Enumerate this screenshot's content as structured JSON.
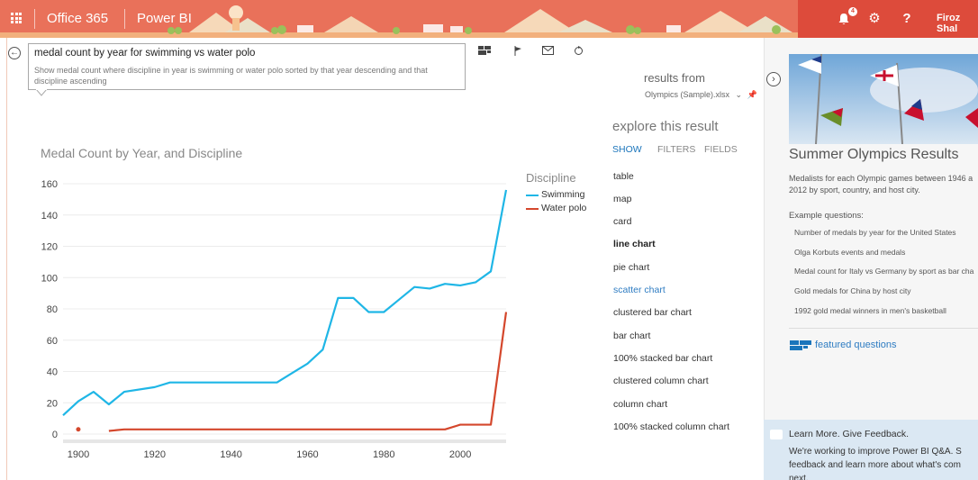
{
  "topbar": {
    "app_name": "Office 365",
    "product_name": "Power BI",
    "notification_count": "4",
    "help_label": "?",
    "user_name": "Firoz Shal"
  },
  "question": {
    "input_value": "medal count by year for swimming vs water polo",
    "restatement": "Show medal count where discipline in year is swimming or water polo sorted by that year descending and that discipline ascending"
  },
  "results": {
    "label": "results from",
    "source": "Olympics (Sample).xlsx"
  },
  "explore": {
    "title": "explore this result",
    "tabs": [
      "SHOW",
      "FILTERS",
      "FIELDS"
    ],
    "visualizations": [
      "table",
      "map",
      "card",
      "line chart",
      "pie chart",
      "scatter chart",
      "clustered bar chart",
      "bar chart",
      "100% stacked bar chart",
      "clustered column chart",
      "column chart",
      "100% stacked column chart"
    ]
  },
  "chart_data": {
    "type": "line",
    "title": "Medal Count by Year, and Discipline",
    "legend_title": "Discipline",
    "legend_position": "right",
    "ylim": [
      0,
      160
    ],
    "xlim": [
      1896,
      2012
    ],
    "yticks": [
      "0",
      "20",
      "40",
      "60",
      "80",
      "100",
      "120",
      "140",
      "160"
    ],
    "xticks": [
      "1900",
      "1920",
      "1940",
      "1960",
      "1980",
      "2000"
    ],
    "grid": true,
    "series": [
      {
        "name": "Swimming",
        "color": "#1fb6e6",
        "x": [
          1896,
          1900,
          1904,
          1908,
          1912,
          1920,
          1924,
          1928,
          1932,
          1936,
          1948,
          1952,
          1956,
          1960,
          1964,
          1968,
          1972,
          1976,
          1980,
          1984,
          1988,
          1992,
          1996,
          2000,
          2004,
          2008,
          2012
        ],
        "values": [
          12,
          21,
          27,
          19,
          27,
          30,
          33,
          33,
          33,
          33,
          33,
          33,
          39,
          45,
          54,
          87,
          87,
          78,
          78,
          86,
          94,
          93,
          96,
          95,
          97,
          104,
          156
        ]
      },
      {
        "name": "Water polo",
        "color": "#d4472c",
        "x": [
          1908,
          1912,
          1920,
          1924,
          1928,
          1932,
          1936,
          1948,
          1952,
          1956,
          1960,
          1964,
          1968,
          1972,
          1976,
          1980,
          1984,
          1988,
          1992,
          1996,
          2000,
          2004,
          2008,
          2012
        ],
        "values": [
          2,
          3,
          3,
          3,
          3,
          3,
          3,
          3,
          3,
          3,
          3,
          3,
          3,
          3,
          3,
          3,
          3,
          3,
          3,
          3,
          6,
          6,
          6,
          78
        ]
      },
      {
        "name": "Water polo (1900)",
        "color": "#d4472c",
        "x": [
          1900
        ],
        "values": [
          3
        ]
      }
    ]
  },
  "right_panel": {
    "title": "Summer Olympics Results",
    "description": "Medalists for each Olympic games between 1946 a 2012 by sport, country, and host city.",
    "examples_label": "Example questions:",
    "examples": [
      "Number of medals by year for the United States",
      "Olga Korbuts events and medals",
      "Medal count for Italy vs Germany by sport as bar cha",
      "Gold medals for China by host city",
      "1992 gold medal winners in men's basketball"
    ],
    "featured_link": "featured questions"
  },
  "feedback": {
    "title": "Learn More. Give Feedback.",
    "text": "We're working to improve Power BI Q&A. S feedback and learn more about what's com next."
  },
  "colors": {
    "topbar": "#e9715a",
    "topbar_right": "#dd4b3b",
    "accent": "#1b75bb",
    "swimming": "#1fb6e6",
    "water_polo": "#d4472c"
  }
}
